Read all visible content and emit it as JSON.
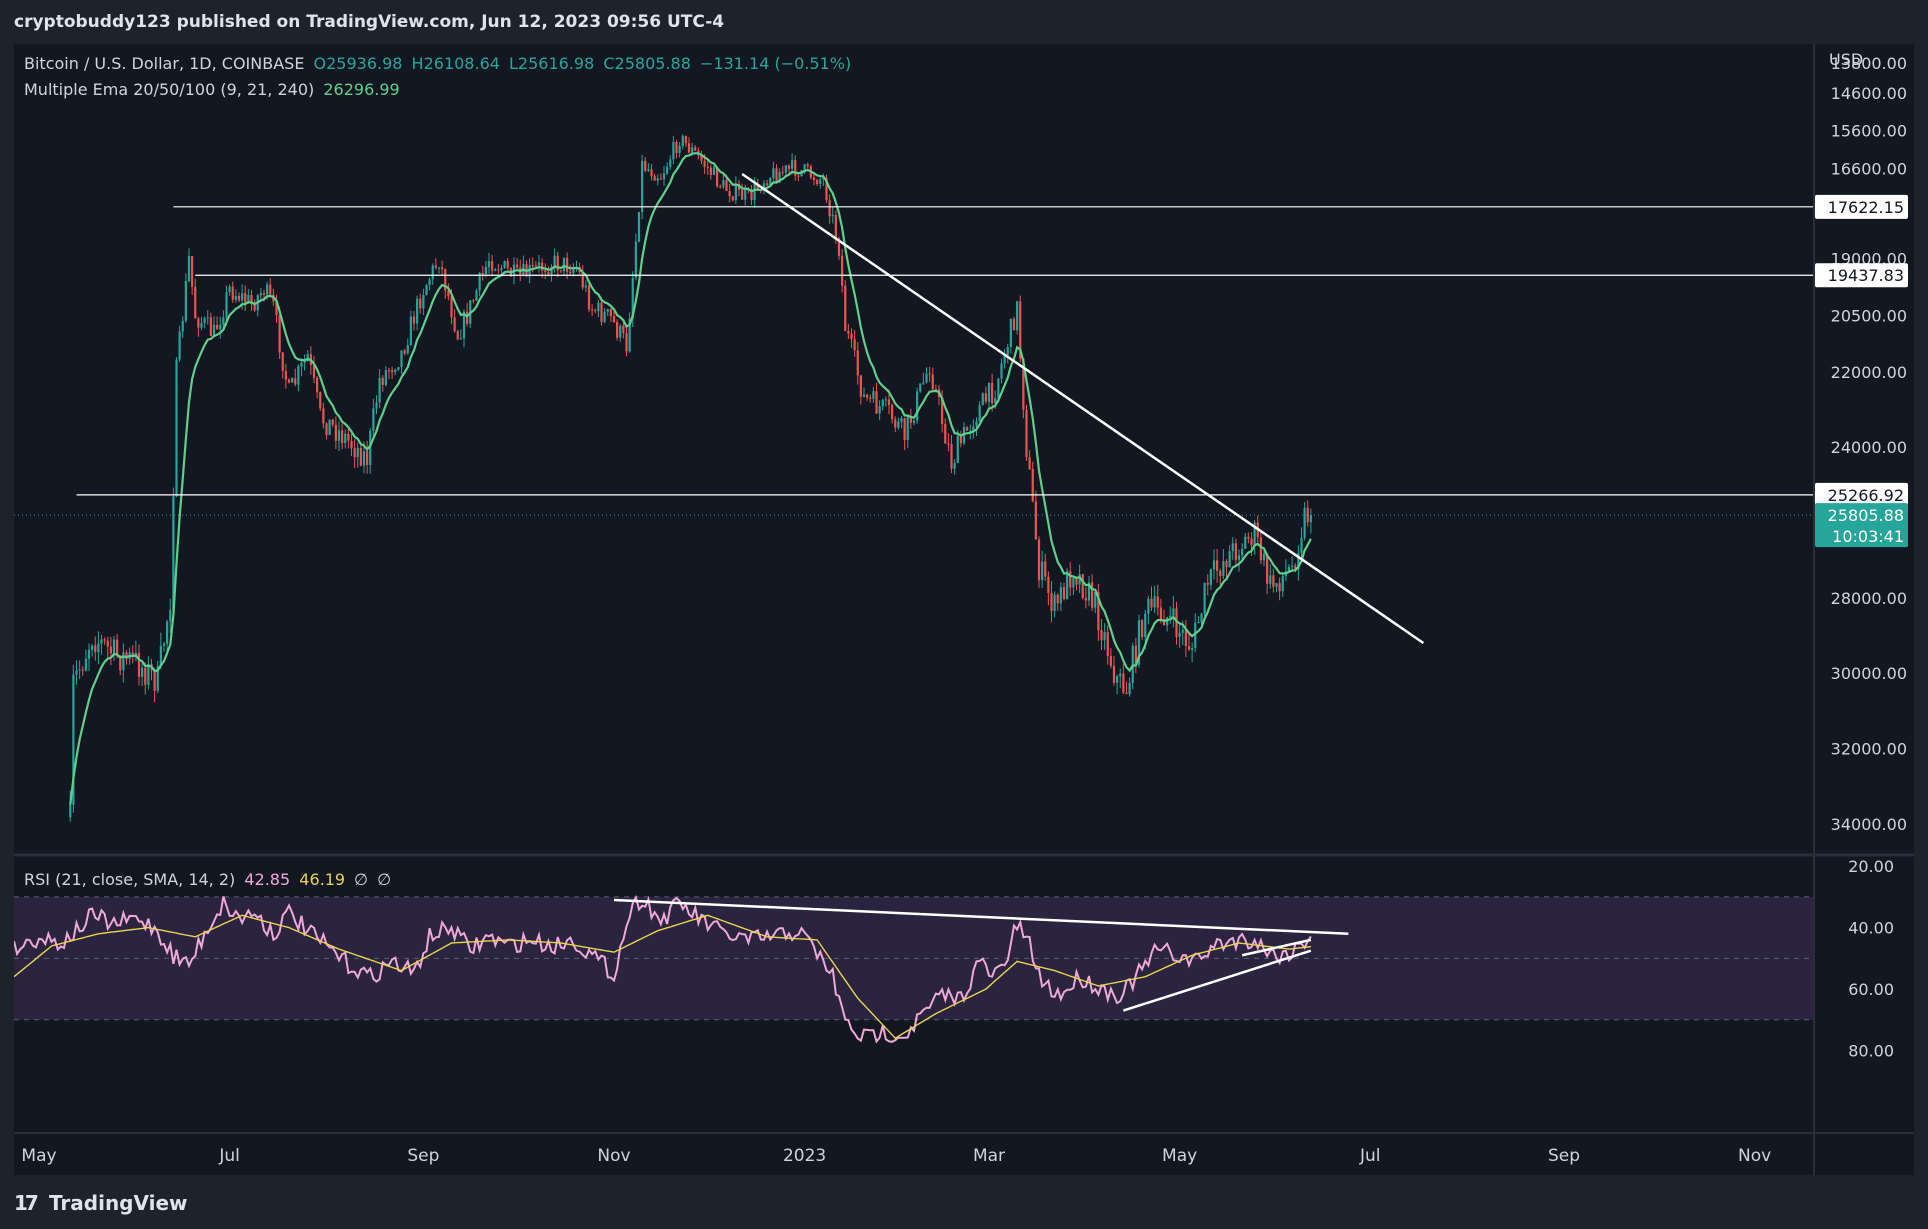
{
  "header": {
    "published_text": "cryptobuddy123 published on TradingView.com, Jun 12, 2023 09:56 UTC-4"
  },
  "legend": {
    "symbol": "Bitcoin / U.S. Dollar, 1D, COINBASE",
    "open": "O25936.98",
    "high": "H26108.64",
    "low": "L25616.98",
    "close": "C25805.88",
    "change": "−131.14 (−0.51%)",
    "ema_label": "Multiple Ema 20/50/100 (9, 21, 240)",
    "ema_value": "26296.99",
    "rsi_label": "RSI (21, close, SMA, 14, 2)",
    "rsi_value": "42.85",
    "rsi_sma_value": "46.19",
    "rsi_extra1": "∅",
    "rsi_extra2": "∅"
  },
  "price_axis": {
    "currency": "USD",
    "ticks": [
      "13800.00",
      "14600.00",
      "15600.00",
      "16600.00",
      "19000.00",
      "20500.00",
      "22000.00",
      "24000.00",
      "28000.00",
      "30000.00",
      "32000.00",
      "34000.00"
    ],
    "tick_values": [
      13800,
      14600,
      15600,
      16600,
      19000,
      20500,
      22000,
      24000,
      28000,
      30000,
      32000,
      34000
    ],
    "level_tags": [
      {
        "label": "17622.15",
        "value": 17622.15
      },
      {
        "label": "19437.83",
        "value": 19437.83
      },
      {
        "label": "25266.92",
        "value": 25266.92
      }
    ],
    "current_price": "25805.88",
    "current_value": 25805.88,
    "countdown": "10:03:41"
  },
  "rsi_axis": {
    "ticks": [
      "20.00",
      "40.00",
      "60.00",
      "80.00"
    ],
    "tick_values": [
      20,
      40,
      60,
      80
    ]
  },
  "time_axis": {
    "labels": [
      "May",
      "Jul",
      "Sep",
      "Nov",
      "2023",
      "Mar",
      "May",
      "Jul",
      "Sep",
      "Nov"
    ],
    "dates": [
      "2022-05-01",
      "2022-07-01",
      "2022-09-01",
      "2022-11-01",
      "2023-01-01",
      "2023-03-01",
      "2023-05-01",
      "2023-07-01",
      "2023-09-01",
      "2023-11-01"
    ]
  },
  "footer": {
    "brand": "TradingView",
    "logo_glyph": "17"
  },
  "colors": {
    "background": "#131722",
    "up": "#26a69a",
    "down": "#ef5350",
    "ema": "#5fd08a",
    "rsi": "#f0a8d8",
    "rsi_sma": "#e8d44d",
    "trendline": "#ffffff"
  },
  "chart_data": [
    {
      "type": "candlestick",
      "scale": "inverted",
      "ylim": [
        13300,
        34800
      ],
      "xlim": [
        "2022-04-23",
        "2023-11-20"
      ],
      "horizontal_levels": [
        17622.15,
        19437.83,
        25266.92
      ],
      "trendline": {
        "from": [
          "2022-12-12",
          16750
        ],
        "to": [
          "2023-07-18",
          29200
        ]
      },
      "close_path": [
        [
          "2022-05-11",
          34000
        ],
        [
          "2022-05-12",
          30300
        ],
        [
          "2022-05-18",
          29000
        ],
        [
          "2022-05-25",
          29500
        ],
        [
          "2022-06-01",
          29700
        ],
        [
          "2022-06-08",
          30200
        ],
        [
          "2022-06-12",
          28000
        ],
        [
          "2022-06-14",
          22000
        ],
        [
          "2022-06-18",
          19000
        ],
        [
          "2022-06-20",
          20500
        ],
        [
          "2022-06-26",
          21000
        ],
        [
          "2022-07-01",
          19800
        ],
        [
          "2022-07-08",
          20200
        ],
        [
          "2022-07-12",
          19800
        ],
        [
          "2022-07-15",
          20300
        ],
        [
          "2022-07-20",
          22600
        ],
        [
          "2022-07-26",
          21600
        ],
        [
          "2022-07-30",
          23200
        ],
        [
          "2022-08-05",
          23600
        ],
        [
          "2022-08-14",
          24300
        ],
        [
          "2022-08-18",
          22200
        ],
        [
          "2022-08-25",
          21500
        ],
        [
          "2022-09-01",
          19800
        ],
        [
          "2022-09-06",
          19000
        ],
        [
          "2022-09-12",
          21000
        ],
        [
          "2022-09-15",
          20500
        ],
        [
          "2022-09-22",
          19000
        ],
        [
          "2022-10-01",
          19500
        ],
        [
          "2022-10-12",
          19100
        ],
        [
          "2022-10-20",
          19200
        ],
        [
          "2022-10-25",
          20300
        ],
        [
          "2022-10-31",
          20600
        ],
        [
          "2022-11-05",
          21300
        ],
        [
          "2022-11-08",
          18500
        ],
        [
          "2022-11-10",
          16500
        ],
        [
          "2022-11-16",
          16800
        ],
        [
          "2022-11-22",
          15800
        ],
        [
          "2022-11-28",
          16300
        ],
        [
          "2022-12-06",
          17100
        ],
        [
          "2022-12-14",
          17400
        ],
        [
          "2022-12-20",
          16800
        ],
        [
          "2022-12-29",
          16600
        ],
        [
          "2023-01-07",
          16900
        ],
        [
          "2023-01-12",
          18700
        ],
        [
          "2023-01-14",
          20800
        ],
        [
          "2023-01-20",
          22700
        ],
        [
          "2023-01-28",
          23100
        ],
        [
          "2023-02-02",
          23700
        ],
        [
          "2023-02-10",
          21800
        ],
        [
          "2023-02-17",
          24400
        ],
        [
          "2023-02-24",
          23200
        ],
        [
          "2023-03-03",
          22400
        ],
        [
          "2023-03-10",
          20300
        ],
        [
          "2023-03-13",
          24000
        ],
        [
          "2023-03-17",
          27200
        ],
        [
          "2023-03-22",
          28300
        ],
        [
          "2023-03-28",
          27200
        ],
        [
          "2023-04-04",
          28200
        ],
        [
          "2023-04-11",
          30200
        ],
        [
          "2023-04-14",
          30400
        ],
        [
          "2023-04-20",
          28300
        ],
        [
          "2023-04-26",
          28400
        ],
        [
          "2023-05-05",
          29300
        ],
        [
          "2023-05-10",
          27600
        ],
        [
          "2023-05-16",
          26900
        ],
        [
          "2023-05-25",
          26300
        ],
        [
          "2023-05-30",
          27700
        ],
        [
          "2023-06-06",
          27200
        ],
        [
          "2023-06-10",
          25800
        ],
        [
          "2023-06-12",
          25805.88
        ]
      ]
    },
    {
      "type": "line",
      "title": "RSI (21, close, SMA, 14, 2)",
      "ylim": [
        17,
        88
      ],
      "scale": "inverted",
      "bands": [
        30,
        50,
        70
      ],
      "series": [
        {
          "name": "RSI",
          "points": [
            [
              "2022-04-23",
              47
            ],
            [
              "2022-05-01",
              43
            ],
            [
              "2022-05-08",
              45
            ],
            [
              "2022-05-12",
              42
            ],
            [
              "2022-05-18",
              36
            ],
            [
              "2022-05-25",
              39
            ],
            [
              "2022-06-01",
              37
            ],
            [
              "2022-06-07",
              40
            ],
            [
              "2022-06-13",
              49
            ],
            [
              "2022-06-18",
              52
            ],
            [
              "2022-06-24",
              40
            ],
            [
              "2022-06-29",
              32
            ],
            [
              "2022-07-04",
              37
            ],
            [
              "2022-07-09",
              35
            ],
            [
              "2022-07-15",
              42
            ],
            [
              "2022-07-20",
              35
            ],
            [
              "2022-07-27",
              42
            ],
            [
              "2022-08-01",
              46
            ],
            [
              "2022-08-08",
              52
            ],
            [
              "2022-08-15",
              56
            ],
            [
              "2022-08-22",
              51
            ],
            [
              "2022-08-29",
              55
            ],
            [
              "2022-09-03",
              43
            ],
            [
              "2022-09-10",
              40
            ],
            [
              "2022-09-16",
              47
            ],
            [
              "2022-09-22",
              43
            ],
            [
              "2022-09-28",
              46
            ],
            [
              "2022-10-05",
              44
            ],
            [
              "2022-10-12",
              46
            ],
            [
              "2022-10-19",
              44
            ],
            [
              "2022-10-26",
              50
            ],
            [
              "2022-11-01",
              55
            ],
            [
              "2022-11-06",
              35
            ],
            [
              "2022-11-10",
              30
            ],
            [
              "2022-11-16",
              38
            ],
            [
              "2022-11-22",
              32
            ],
            [
              "2022-11-28",
              37
            ],
            [
              "2022-12-06",
              42
            ],
            [
              "2022-12-14",
              44
            ],
            [
              "2022-12-22",
              43
            ],
            [
              "2022-12-30",
              41
            ],
            [
              "2023-01-05",
              48
            ],
            [
              "2023-01-10",
              56
            ],
            [
              "2023-01-14",
              71
            ],
            [
              "2023-01-20",
              76
            ],
            [
              "2023-01-26",
              74
            ],
            [
              "2023-02-02",
              75
            ],
            [
              "2023-02-08",
              68
            ],
            [
              "2023-02-14",
              62
            ],
            [
              "2023-02-20",
              63
            ],
            [
              "2023-02-26",
              51
            ],
            [
              "2023-03-02",
              56
            ],
            [
              "2023-03-06",
              52
            ],
            [
              "2023-03-10",
              39
            ],
            [
              "2023-03-14",
              46
            ],
            [
              "2023-03-18",
              58
            ],
            [
              "2023-03-24",
              62
            ],
            [
              "2023-03-30",
              56
            ],
            [
              "2023-04-06",
              60
            ],
            [
              "2023-04-12",
              62
            ],
            [
              "2023-04-18",
              55
            ],
            [
              "2023-04-24",
              47
            ],
            [
              "2023-04-30",
              49
            ],
            [
              "2023-05-06",
              51
            ],
            [
              "2023-05-12",
              46
            ],
            [
              "2023-05-18",
              44
            ],
            [
              "2023-05-25",
              44
            ],
            [
              "2023-05-31",
              49
            ],
            [
              "2023-06-06",
              48
            ],
            [
              "2023-06-12",
              42.85
            ]
          ]
        },
        {
          "name": "RSI-based MA",
          "points": [
            [
              "2022-04-23",
              56
            ],
            [
              "2022-05-05",
              46
            ],
            [
              "2022-05-20",
              42
            ],
            [
              "2022-06-05",
              40
            ],
            [
              "2022-06-20",
              43
            ],
            [
              "2022-07-05",
              36
            ],
            [
              "2022-07-20",
              40
            ],
            [
              "2022-08-05",
              47
            ],
            [
              "2022-08-25",
              54
            ],
            [
              "2022-09-10",
              45
            ],
            [
              "2022-09-28",
              44
            ],
            [
              "2022-10-15",
              45
            ],
            [
              "2022-11-01",
              48
            ],
            [
              "2022-11-15",
              41
            ],
            [
              "2022-12-01",
              36
            ],
            [
              "2022-12-20",
              43
            ],
            [
              "2023-01-05",
              44
            ],
            [
              "2023-01-18",
              63
            ],
            [
              "2023-01-30",
              76
            ],
            [
              "2023-02-12",
              68
            ],
            [
              "2023-02-28",
              60
            ],
            [
              "2023-03-10",
              51
            ],
            [
              "2023-03-22",
              54
            ],
            [
              "2023-04-05",
              59
            ],
            [
              "2023-04-20",
              56
            ],
            [
              "2023-05-05",
              49
            ],
            [
              "2023-05-20",
              45
            ],
            [
              "2023-06-05",
              47
            ],
            [
              "2023-06-12",
              46.19
            ]
          ]
        }
      ],
      "trendlines": [
        {
          "from": [
            "2022-11-01",
            31
          ],
          "to": [
            "2023-06-24",
            42
          ]
        },
        {
          "from": [
            "2023-04-13",
            67
          ],
          "to": [
            "2023-06-12",
            47.5
          ]
        },
        {
          "from": [
            "2023-05-21",
            49
          ],
          "to": [
            "2023-06-12",
            44
          ]
        }
      ]
    }
  ]
}
